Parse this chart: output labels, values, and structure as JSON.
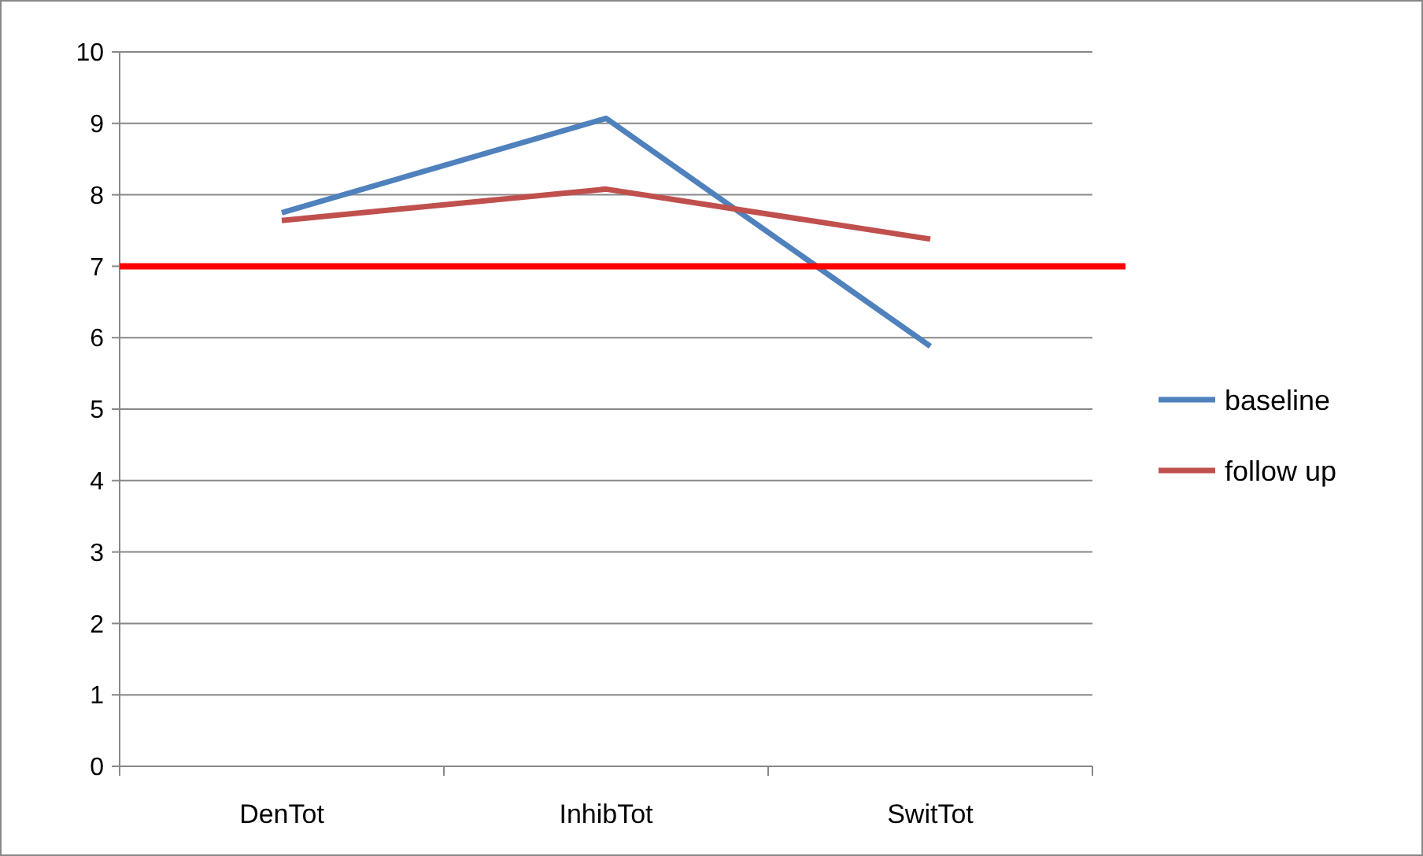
{
  "chart_data": {
    "type": "line",
    "categories": [
      "DenTot",
      "InhibTot",
      "SwitTot"
    ],
    "series": [
      {
        "name": "baseline",
        "color": "#4f81bd",
        "values": [
          7.75,
          9.07,
          5.88
        ]
      },
      {
        "name": "follow up",
        "color": "#c0504d",
        "values": [
          7.64,
          8.08,
          7.38
        ]
      }
    ],
    "ylim": [
      0,
      10
    ],
    "yticks": [
      0,
      1,
      2,
      3,
      4,
      5,
      6,
      7,
      8,
      9,
      10
    ],
    "grid": "y",
    "legend": "right",
    "line_style": "solid",
    "ref_lines": [
      {
        "axis": "y",
        "value": 7,
        "color": "#ff0000"
      }
    ]
  }
}
